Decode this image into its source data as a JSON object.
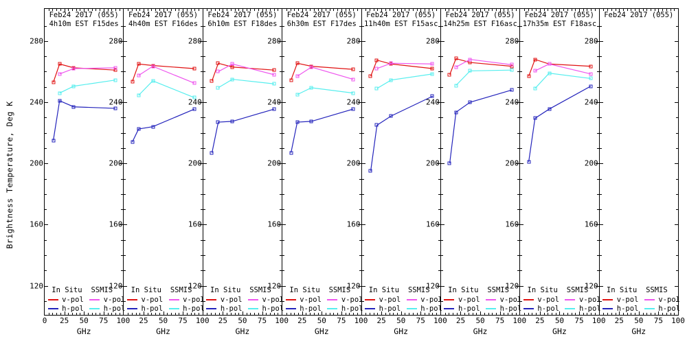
{
  "figure": {
    "ylabel": "Brightness Temperature, Deg K",
    "xlabel": "GHz",
    "background": "#ffffff",
    "frame_color": "#000000"
  },
  "axes": {
    "ylim": [
      100,
      300
    ],
    "xlim": [
      0,
      100
    ],
    "y_ticks": [
      280,
      240,
      200,
      160,
      120
    ],
    "y_minor_step": 10,
    "x_ticks": [
      0,
      25,
      50,
      75,
      100
    ],
    "x_minor_step": 5,
    "grid": false
  },
  "colors": {
    "insitu_v": "#e01010",
    "insitu_h": "#2222bb",
    "ssmis_v": "#ee55ee",
    "ssmis_h": "#55eeee"
  },
  "legend": {
    "col1_header": "In Situ",
    "col2_header": "SSMIS",
    "v_label": "v-pol",
    "h_label": "h-pol",
    "position": "bottom-inside"
  },
  "chart_data": {
    "type": "line",
    "xlabel": "GHz",
    "ylabel": "Brightness Temperature, Deg K",
    "insitu_x_ghz": [
      11,
      19,
      37,
      90
    ],
    "ssmis_x_ghz": [
      19,
      37,
      90
    ],
    "panels": [
      {
        "title": "Feb24 2017 (055)",
        "subtitle": "4h10m EST F15des",
        "insitu_v": [
          253,
          265,
          262.5,
          261
        ],
        "insitu_h": [
          215,
          241,
          237,
          236
        ],
        "ssmis_v": [
          258.5,
          262,
          262.5
        ],
        "ssmis_h": [
          246,
          250.5,
          254.5
        ]
      },
      {
        "title": "Feb24 2017 (055)",
        "subtitle": "4h40m EST F16des",
        "insitu_v": [
          253.5,
          265,
          264,
          262
        ],
        "insitu_h": [
          214,
          222.5,
          224,
          235.5
        ],
        "ssmis_v": [
          257.5,
          263.5,
          252.5
        ],
        "ssmis_h": [
          244.5,
          254,
          243
        ]
      },
      {
        "title": "Feb24 2017 (055)",
        "subtitle": "6h10m EST F18des",
        "insitu_v": [
          254,
          265.5,
          263,
          261
        ],
        "insitu_h": [
          207,
          227,
          227.5,
          235.5
        ],
        "ssmis_v": [
          260,
          265,
          258
        ],
        "ssmis_h": [
          249.5,
          255,
          252
        ]
      },
      {
        "title": "Feb24 2017 (055)",
        "subtitle": "6h30m EST F17des",
        "insitu_v": [
          254.5,
          265.5,
          263.5,
          261.5
        ],
        "insitu_h": [
          207,
          227,
          227.5,
          235.5
        ],
        "ssmis_v": [
          257,
          263,
          255
        ],
        "ssmis_h": [
          245,
          249.5,
          246
        ]
      },
      {
        "title": "Feb24 2017 (055)",
        "subtitle": "11h40m EST F15asc",
        "insitu_v": [
          257,
          267.5,
          265,
          262
        ],
        "insitu_h": [
          195,
          225,
          231,
          244
        ],
        "ssmis_v": [
          262,
          265.5,
          265
        ],
        "ssmis_h": [
          249,
          254.5,
          258.5
        ]
      },
      {
        "title": "Feb24 2017 (055)",
        "subtitle": "14h25m EST F16asc",
        "insitu_v": [
          258,
          268.5,
          266,
          263.5
        ],
        "insitu_h": [
          200,
          233.5,
          240,
          248
        ],
        "ssmis_v": [
          263,
          268,
          264.5
        ],
        "ssmis_h": [
          251,
          260.5,
          261
        ]
      },
      {
        "title": "Feb24 2017 (055)",
        "subtitle": "17h35m EST F18asc",
        "insitu_v": [
          257,
          268,
          265,
          263.5
        ],
        "insitu_h": [
          201,
          229.5,
          235.5,
          250.5
        ],
        "ssmis_v": [
          260.5,
          265,
          258.5
        ],
        "ssmis_h": [
          249,
          259,
          255.5
        ]
      },
      {
        "title": "Feb24 2017 (055)",
        "subtitle": "",
        "insitu_v": [],
        "insitu_h": [],
        "ssmis_v": [],
        "ssmis_h": []
      }
    ]
  }
}
